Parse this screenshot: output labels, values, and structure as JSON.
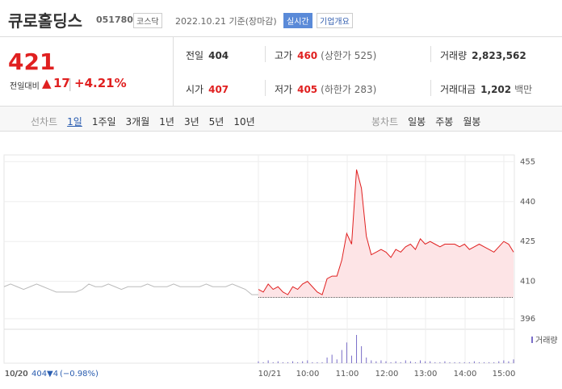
{
  "header": {
    "name": "큐로홀딩스",
    "code": "051780",
    "market": "코스닥",
    "date": "2022.10.21 기준(장마감)",
    "realtime": "실시간",
    "company": "기업개요"
  },
  "price": {
    "current": "421",
    "change_label": "전일대비",
    "change": "17",
    "rate": "+4.21%"
  },
  "stats": [
    [
      {
        "label": "전일",
        "value": "404",
        "extra": ""
      },
      {
        "label": "고가",
        "value": "460",
        "extra": "(상한가 525)"
      },
      {
        "label": "거래량",
        "value": "2,823,562",
        "extra": ""
      }
    ],
    [
      {
        "label": "시가",
        "value": "407",
        "extra": ""
      },
      {
        "label": "저가",
        "value": "405",
        "extra": "(하한가 283)"
      },
      {
        "label": "거래대금",
        "value": "1,202",
        "extra": "백만"
      }
    ]
  ],
  "tabs": {
    "line_label": "선차트",
    "periods": [
      "1일",
      "1주일",
      "3개월",
      "1년",
      "3년",
      "5년",
      "10년"
    ],
    "candle_label": "봉차트",
    "candles": [
      "일봉",
      "주봉",
      "월봉"
    ]
  },
  "chart_data": {
    "type": "line",
    "ylim": [
      392,
      456
    ],
    "yticks": [
      455,
      440,
      425,
      410,
      396
    ],
    "base": 404,
    "series": [
      {
        "name": "10/20",
        "color": "#bbbbbb",
        "values": [
          408,
          409,
          408,
          407,
          408,
          409,
          408,
          407,
          406,
          406,
          406,
          406,
          407,
          409,
          408,
          408,
          409,
          408,
          407,
          408,
          408,
          408,
          409,
          408,
          408,
          408,
          409,
          408,
          408,
          408,
          408,
          409,
          408,
          408,
          408,
          409,
          408,
          407,
          405,
          405
        ]
      },
      {
        "name": "10/21",
        "color": "#e02020",
        "values": [
          407,
          406,
          409,
          407,
          408,
          406,
          405,
          408,
          407,
          409,
          410,
          408,
          406,
          405,
          411,
          412,
          412,
          418,
          428,
          424,
          452,
          445,
          427,
          420,
          421,
          422,
          421,
          419,
          422,
          421,
          423,
          424,
          422,
          426,
          424,
          425,
          424,
          423,
          424,
          424,
          424,
          423,
          424,
          422,
          423,
          424,
          423,
          422,
          421,
          423,
          425,
          424,
          421
        ]
      }
    ],
    "volume": {
      "name": "거래량",
      "values": [
        2,
        1,
        3,
        1,
        2,
        1,
        1,
        2,
        1,
        2,
        3,
        1,
        1,
        1,
        6,
        9,
        4,
        14,
        22,
        8,
        30,
        18,
        6,
        3,
        2,
        3,
        2,
        1,
        2,
        1,
        3,
        2,
        1,
        3,
        2,
        2,
        1,
        1,
        2,
        1,
        1,
        1,
        1,
        1,
        2,
        1,
        1,
        1,
        1,
        2,
        3,
        2,
        4
      ]
    },
    "x_labels": [
      "10/20",
      "10/21",
      "10:00",
      "11:00",
      "12:00",
      "13:00",
      "14:00",
      "15:00"
    ],
    "footer": {
      "date": "10/20",
      "price": "404",
      "change": "▼4",
      "rate": "(−0.98%)"
    }
  }
}
